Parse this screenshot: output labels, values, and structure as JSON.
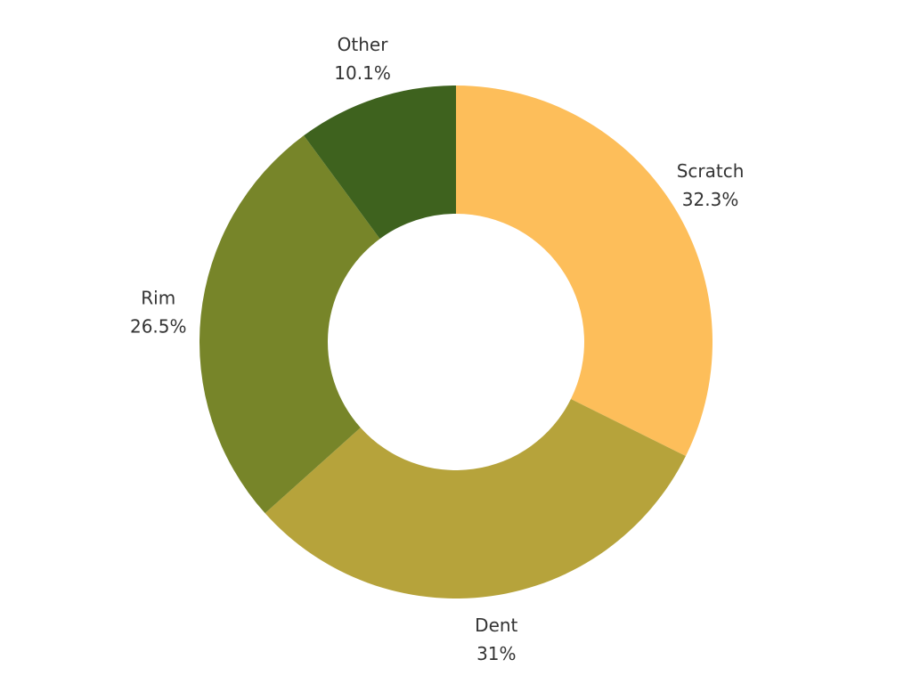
{
  "chart_data": {
    "type": "pie",
    "variant": "donut",
    "title": "",
    "slices": [
      {
        "label": "Scratch",
        "value": 32.3,
        "value_label": "32.3%",
        "color": "#FDBE5A"
      },
      {
        "label": "Dent",
        "value": 31,
        "value_label": "31%",
        "color": "#B6A33B"
      },
      {
        "label": "Rim",
        "value": 26.5,
        "value_label": "26.5%",
        "color": "#778529"
      },
      {
        "label": "Other",
        "value": 10.1,
        "value_label": "10.1%",
        "color": "#3E621E"
      }
    ],
    "legend": "none"
  }
}
